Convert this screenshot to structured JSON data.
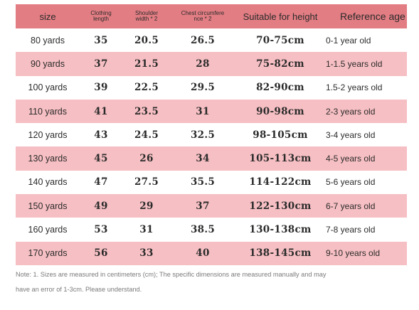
{
  "header": {
    "size": "size",
    "clothing_length_1": "Clothing",
    "clothing_length_2": "length",
    "shoulder_1": "Shoulder",
    "shoulder_2": "width * 2",
    "chest_1": "Chest circumfere",
    "chest_2": "nce * 2",
    "height": "Suitable for height",
    "age": "Reference age"
  },
  "rows": [
    {
      "size": "80 yards",
      "length": "35",
      "shoulder": "20.5",
      "chest": "26.5",
      "height": "70-75cm",
      "age": "0-1 year old"
    },
    {
      "size": "90 yards",
      "length": "37",
      "shoulder": "21.5",
      "chest": "28",
      "height": "75-82cm",
      "age": "1-1.5 years old"
    },
    {
      "size": "100 yards",
      "length": "39",
      "shoulder": "22.5",
      "chest": "29.5",
      "height": "82-90cm",
      "age": "1.5-2 years old"
    },
    {
      "size": "110 yards",
      "length": "41",
      "shoulder": "23.5",
      "chest": "31",
      "height": "90-98cm",
      "age": "2-3 years old"
    },
    {
      "size": "120 yards",
      "length": "43",
      "shoulder": "24.5",
      "chest": "32.5",
      "height": "98-105cm",
      "age": "3-4 years old"
    },
    {
      "size": "130 yards",
      "length": "45",
      "shoulder": "26",
      "chest": "34",
      "height": "105-113cm",
      "age": "4-5 years old"
    },
    {
      "size": "140 yards",
      "length": "47",
      "shoulder": "27.5",
      "chest": "35.5",
      "height": "114-122cm",
      "age": "5-6 years old"
    },
    {
      "size": "150 yards",
      "length": "49",
      "shoulder": "29",
      "chest": "37",
      "height": "122-130cm",
      "age": "6-7 years old"
    },
    {
      "size": "160 yards",
      "length": "53",
      "shoulder": "31",
      "chest": "38.5",
      "height": "130-138cm",
      "age": "7-8 years old"
    },
    {
      "size": "170 yards",
      "length": "56",
      "shoulder": "33",
      "chest": "40",
      "height": "138-145cm",
      "age": "9-10 years old"
    }
  ],
  "note": {
    "line1": "Note: 1. Sizes are measured in centimeters (cm); The specific dimensions are measured manually and may",
    "line2": "have an error of 1-3cm. Please understand."
  },
  "colors": {
    "header_bg": "#e27d83",
    "stripe_bg": "#f6bfc3",
    "plain_bg": "#ffffff"
  }
}
